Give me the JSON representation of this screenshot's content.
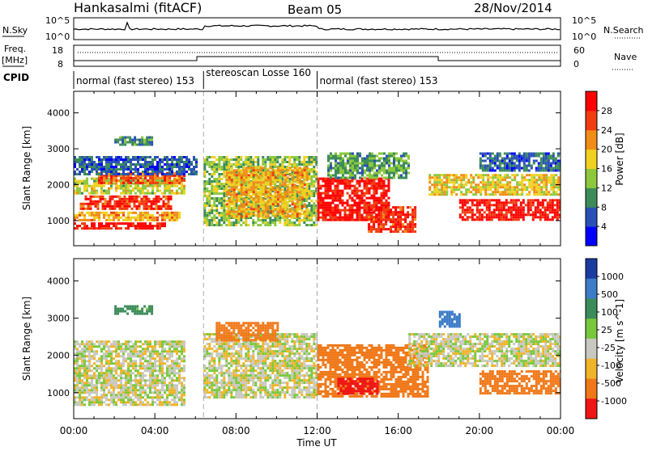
{
  "header": {
    "station": "Hankasalmi (fitACF)",
    "beam": "Beam 05",
    "date": "28/Nov/2014"
  },
  "top_panel": {
    "left_label": "N.Sky",
    "right_label": "N.Search",
    "left_ticks": [
      "10^5",
      "10^0"
    ],
    "right_ticks": [
      "10^5",
      "10^0"
    ]
  },
  "freq_panel": {
    "left_label_line1": "Freq.",
    "left_label_line2": "[MHz]",
    "left_ticks": [
      "18",
      "8"
    ],
    "right_ticks": [
      "60",
      "0"
    ],
    "right_label": "Nave"
  },
  "cpid": {
    "label": "CPID",
    "segments": [
      {
        "text": "normal (fast stereo) 153",
        "start_hour": 0,
        "end_hour": 6.4
      },
      {
        "text": "stereoscan Losse 160",
        "start_hour": 6.4,
        "end_hour": 12.0
      },
      {
        "text": "normal (fast stereo) 153",
        "start_hour": 12.0,
        "end_hour": 24
      }
    ]
  },
  "chart_data": [
    {
      "type": "heatmap",
      "title": "",
      "xlabel": "Time UT",
      "ylabel": "Slant Range [km]",
      "x_ticks": [
        "00:00",
        "04:00",
        "08:00",
        "12:00",
        "16:00",
        "20:00",
        "00:00"
      ],
      "y_ticks": [
        1000,
        2000,
        3000,
        4000
      ],
      "ylim": [
        300,
        4600
      ],
      "xlim_hours": [
        0,
        24
      ],
      "colorbar": {
        "label": "Power [dB]",
        "ticks": [
          4,
          8,
          12,
          16,
          20,
          24,
          28
        ],
        "colors": [
          "#0000ff",
          "#2a50b8",
          "#3c8c5a",
          "#8cc83c",
          "#f0d020",
          "#f08c18",
          "#f03c10",
          "#ff0000"
        ]
      },
      "regions": [
        {
          "t0": 0,
          "t1": 4.5,
          "r0": 750,
          "r1": 950,
          "level": 28
        },
        {
          "t0": 0,
          "t1": 5.2,
          "r0": 1000,
          "r1": 1250,
          "level": 20
        },
        {
          "t0": 0.3,
          "t1": 4.8,
          "r0": 1350,
          "r1": 1700,
          "level": 26
        },
        {
          "t0": 0,
          "t1": 5.5,
          "r0": 1750,
          "r1": 2200,
          "level": 16
        },
        {
          "t0": 1.2,
          "t1": 5.5,
          "r0": 2050,
          "r1": 2350,
          "level": 24
        },
        {
          "t0": 0,
          "t1": 6.0,
          "r0": 2300,
          "r1": 2800,
          "level": 8
        },
        {
          "t0": 2.0,
          "t1": 3.8,
          "r0": 3100,
          "r1": 3350,
          "level": 10
        },
        {
          "t0": 6.4,
          "t1": 12,
          "r0": 850,
          "r1": 2800,
          "level": 14
        },
        {
          "t0": 7.5,
          "t1": 11.5,
          "r0": 1100,
          "r1": 2500,
          "level": 20
        },
        {
          "t0": 12,
          "t1": 15.5,
          "r0": 1000,
          "r1": 2200,
          "level": 28
        },
        {
          "t0": 12.5,
          "t1": 16.5,
          "r0": 2200,
          "r1": 2900,
          "level": 12
        },
        {
          "t0": 14.5,
          "t1": 16.8,
          "r0": 700,
          "r1": 1400,
          "level": 26
        },
        {
          "t0": 17.5,
          "t1": 24,
          "r0": 1700,
          "r1": 2300,
          "level": 18
        },
        {
          "t0": 19.0,
          "t1": 24,
          "r0": 1000,
          "r1": 1600,
          "level": 28
        },
        {
          "t0": 20.0,
          "t1": 24,
          "r0": 2400,
          "r1": 2900,
          "level": 8
        }
      ]
    },
    {
      "type": "heatmap",
      "title": "",
      "xlabel": "Time UT",
      "ylabel": "Slant Range [km]",
      "x_ticks": [
        "00:00",
        "04:00",
        "08:00",
        "12:00",
        "16:00",
        "20:00",
        "00:00"
      ],
      "y_ticks": [
        1000,
        2000,
        3000,
        4000
      ],
      "ylim": [
        300,
        4600
      ],
      "xlim_hours": [
        0,
        24
      ],
      "colorbar": {
        "label": "Velocity [m s^-1]",
        "ticks": [
          1000,
          500,
          100,
          25,
          -25,
          -100,
          -500,
          -1000
        ],
        "colors": [
          "#1a3ca0",
          "#3c7cc8",
          "#3c8c5a",
          "#78c83c",
          "#c8c8c0",
          "#f0b428",
          "#f07818",
          "#f01414"
        ]
      },
      "regions": [
        {
          "t0": 0,
          "t1": 5.5,
          "r0": 700,
          "r1": 2400,
          "level": 0
        },
        {
          "t0": 2.0,
          "t1": 3.8,
          "r0": 3100,
          "r1": 3350,
          "level": 150
        },
        {
          "t0": 6.4,
          "t1": 12,
          "r0": 850,
          "r1": 2600,
          "level": 0
        },
        {
          "t0": 7.0,
          "t1": 10.0,
          "r0": 2400,
          "r1": 2900,
          "level": -300
        },
        {
          "t0": 12,
          "t1": 17.5,
          "r0": 900,
          "r1": 2300,
          "level": -300
        },
        {
          "t0": 13.0,
          "t1": 15.0,
          "r0": 1000,
          "r1": 1400,
          "level": -800
        },
        {
          "t0": 16.5,
          "t1": 24,
          "r0": 1700,
          "r1": 2600,
          "level": 0
        },
        {
          "t0": 20.0,
          "t1": 24,
          "r0": 1000,
          "r1": 1600,
          "level": -300
        },
        {
          "t0": 18.0,
          "t1": 19.0,
          "r0": 2800,
          "r1": 3200,
          "level": 400
        }
      ]
    }
  ]
}
